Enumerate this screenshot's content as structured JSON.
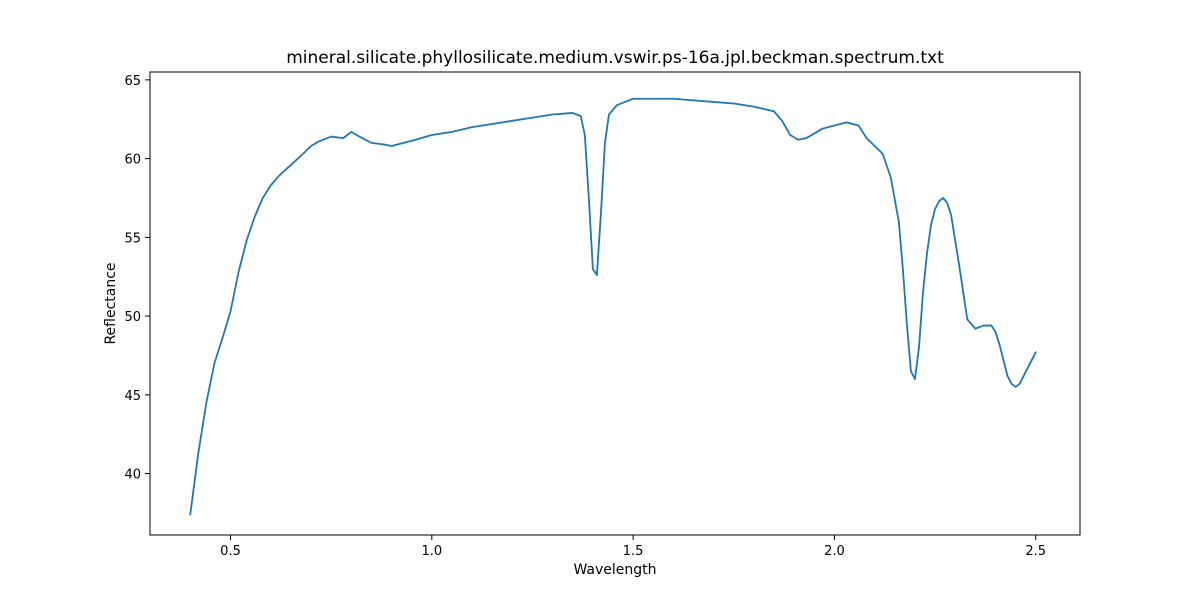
{
  "chart_data": {
    "type": "line",
    "title": "mineral.silicate.phyllosilicate.medium.vswir.ps-16a.jpl.beckman.spectrum.txt",
    "xlabel": "Wavelength",
    "ylabel": "Reflectance",
    "xlim": [
      0.3,
      2.61
    ],
    "ylim": [
      36.1,
      65.5
    ],
    "xticks": [
      0.5,
      1.0,
      1.5,
      2.0,
      2.5
    ],
    "yticks": [
      40,
      45,
      50,
      55,
      60,
      65
    ],
    "xtick_labels": [
      "0.5",
      "1.0",
      "1.5",
      "2.0",
      "2.5"
    ],
    "ytick_labels": [
      "40",
      "45",
      "50",
      "55",
      "60",
      "65"
    ],
    "grid": false,
    "legend": "none",
    "series": [
      {
        "color": "#1f77b4",
        "x": [
          0.4,
          0.42,
          0.44,
          0.46,
          0.48,
          0.5,
          0.52,
          0.54,
          0.56,
          0.58,
          0.6,
          0.62,
          0.65,
          0.68,
          0.7,
          0.72,
          0.75,
          0.78,
          0.8,
          0.82,
          0.85,
          0.88,
          0.9,
          0.93,
          0.96,
          1.0,
          1.05,
          1.1,
          1.15,
          1.2,
          1.25,
          1.3,
          1.35,
          1.37,
          1.38,
          1.39,
          1.4,
          1.41,
          1.42,
          1.43,
          1.44,
          1.46,
          1.48,
          1.5,
          1.55,
          1.6,
          1.65,
          1.7,
          1.75,
          1.8,
          1.85,
          1.87,
          1.89,
          1.91,
          1.93,
          1.95,
          1.97,
          2.0,
          2.03,
          2.06,
          2.08,
          2.1,
          2.12,
          2.14,
          2.16,
          2.17,
          2.18,
          2.19,
          2.2,
          2.21,
          2.22,
          2.23,
          2.24,
          2.25,
          2.26,
          2.27,
          2.28,
          2.29,
          2.3,
          2.31,
          2.32,
          2.33,
          2.35,
          2.37,
          2.39,
          2.4,
          2.41,
          2.42,
          2.43,
          2.44,
          2.45,
          2.46,
          2.47,
          2.48,
          2.49,
          2.5
        ],
        "y": [
          37.4,
          41.3,
          44.5,
          47.0,
          48.6,
          50.3,
          52.8,
          54.8,
          56.3,
          57.5,
          58.3,
          58.9,
          59.6,
          60.3,
          60.8,
          61.1,
          61.4,
          61.3,
          61.7,
          61.4,
          61.0,
          60.9,
          60.8,
          61.0,
          61.2,
          61.5,
          61.7,
          62.0,
          62.2,
          62.4,
          62.6,
          62.8,
          62.9,
          62.7,
          61.5,
          57.5,
          53.0,
          52.6,
          56.5,
          61.0,
          62.8,
          63.4,
          63.6,
          63.8,
          63.8,
          63.8,
          63.7,
          63.6,
          63.5,
          63.3,
          63.0,
          62.4,
          61.5,
          61.2,
          61.3,
          61.6,
          61.9,
          62.1,
          62.3,
          62.1,
          61.3,
          60.8,
          60.3,
          58.8,
          56.0,
          53.0,
          49.5,
          46.5,
          46.0,
          48.0,
          51.5,
          54.0,
          55.8,
          56.8,
          57.3,
          57.5,
          57.2,
          56.4,
          54.8,
          53.2,
          51.5,
          49.8,
          49.2,
          49.4,
          49.4,
          49.0,
          48.2,
          47.2,
          46.2,
          45.7,
          45.5,
          45.7,
          46.2,
          46.7,
          47.2,
          47.7
        ]
      }
    ]
  }
}
